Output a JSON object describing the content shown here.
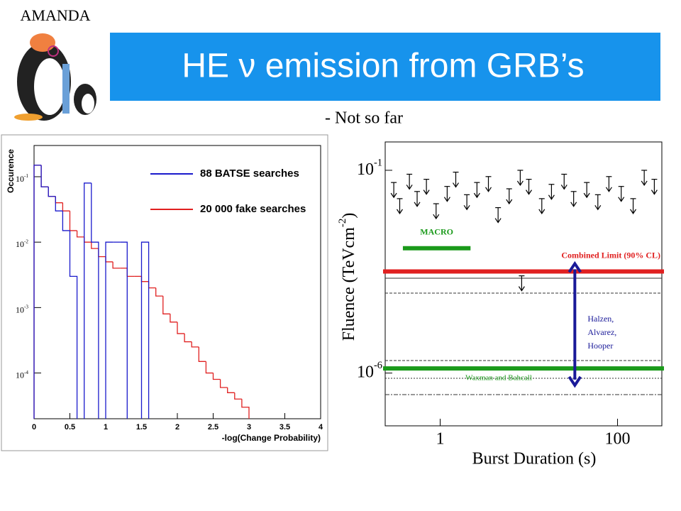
{
  "header": {
    "corner": "AMANDA",
    "title": "HE ν emission from GRB’s",
    "subtitle": "- Not so far"
  },
  "chart_data": [
    {
      "type": "histogram",
      "x_label": "-log(Change Probability)",
      "y_label": "Occurence",
      "bins": [
        0,
        0.1,
        0.2,
        0.3,
        0.4,
        0.5,
        0.6,
        0.7,
        0.8,
        0.9,
        1.0,
        1.1,
        1.2,
        1.3,
        1.4,
        1.5,
        1.6,
        1.7,
        1.8,
        1.9,
        2.0,
        2.1,
        2.2,
        2.3,
        2.4,
        2.5,
        2.6,
        2.7,
        2.8,
        2.9,
        3.0
      ],
      "series": [
        {
          "name": "88 BATSE searches",
          "color": "#1a1acc",
          "values": [
            0.15,
            0.07,
            0.05,
            0.03,
            0.015,
            0.003,
            null,
            0.08,
            0.01,
            null,
            0.01,
            0.01,
            0.01,
            null,
            null,
            0.01,
            null,
            null,
            null,
            null,
            null,
            null,
            null,
            null,
            null,
            null,
            null,
            null,
            null,
            null
          ]
        },
        {
          "name": "20 000 fake searches",
          "color": "#e02020",
          "values": [
            0.15,
            0.07,
            0.05,
            0.04,
            0.03,
            0.015,
            0.012,
            0.01,
            0.008,
            0.006,
            0.005,
            0.004,
            0.004,
            0.003,
            0.003,
            0.0025,
            0.002,
            0.0015,
            0.0008,
            0.0006,
            0.0004,
            0.0003,
            0.00025,
            0.00015,
            0.0001,
            8e-05,
            6e-05,
            5e-05,
            4e-05,
            3e-05
          ]
        }
      ],
      "xlim": [
        0,
        4
      ],
      "xticks": [
        0,
        0.5,
        1,
        1.5,
        2,
        2.5,
        3,
        3.5,
        4
      ],
      "ylim": [
        2e-05,
        0.3
      ],
      "yscale": "log",
      "yticks": [
        {
          "value": 0.1,
          "label": "10",
          "exponent": "-1"
        },
        {
          "value": 0.01,
          "label": "10",
          "exponent": "-2"
        },
        {
          "value": 0.001,
          "label": "10",
          "exponent": "-3"
        },
        {
          "value": 0.0001,
          "label": "10",
          "exponent": "-4"
        }
      ],
      "legend": "upper right"
    },
    {
      "type": "limits",
      "x_label": "Burst Duration (s)",
      "y_label": [
        "Fluence (TeVcm",
        "-2",
        ")"
      ],
      "xlim": [
        0.24,
        316
      ],
      "xscale": "log",
      "xticks": [
        1,
        100
      ],
      "ylim": [
        5e-08,
        0.5
      ],
      "yscale": "log",
      "yticks": [
        {
          "value": 0.1,
          "label": "10",
          "exponent": "-1"
        },
        {
          "value": 1e-06,
          "label": "10",
          "exponent": "-6"
        }
      ],
      "points": {
        "color": "#000000",
        "x": [
          0.3,
          0.35,
          0.45,
          0.55,
          0.7,
          0.9,
          1.2,
          1.5,
          2,
          2.6,
          3.5,
          4.5,
          6,
          8,
          8.3,
          10,
          14,
          18,
          25,
          32,
          45,
          60,
          80,
          110,
          150,
          200,
          260
        ],
        "y": [
          0.05,
          0.02,
          0.08,
          0.03,
          0.06,
          0.015,
          0.04,
          0.09,
          0.025,
          0.05,
          0.07,
          0.012,
          0.035,
          0.1,
          0.00025,
          0.06,
          0.02,
          0.045,
          0.08,
          0.03,
          0.05,
          0.025,
          0.07,
          0.04,
          0.02,
          0.1,
          0.06
        ]
      },
      "limits": [
        {
          "name": "MACRO",
          "color": "#1a9a1a",
          "y": 0.0012,
          "x": [
            0.38,
            2.2
          ],
          "label_pos": "above"
        },
        {
          "name": "Combined Limit (90% CL)",
          "color": "#e02020",
          "y": 0.00032,
          "label_pos": "above-right"
        },
        {
          "name": "Waxman and Bahcall",
          "color": "#1a9a1a",
          "y": 1.3e-06,
          "label_pos": "below"
        }
      ],
      "range_arrow": {
        "text": [
          "Halzen,",
          "Alvarez,",
          "Hooper"
        ],
        "color": "#1a1a99",
        "x": 33,
        "y": [
          0.0005,
          5e-07
        ]
      }
    }
  ]
}
